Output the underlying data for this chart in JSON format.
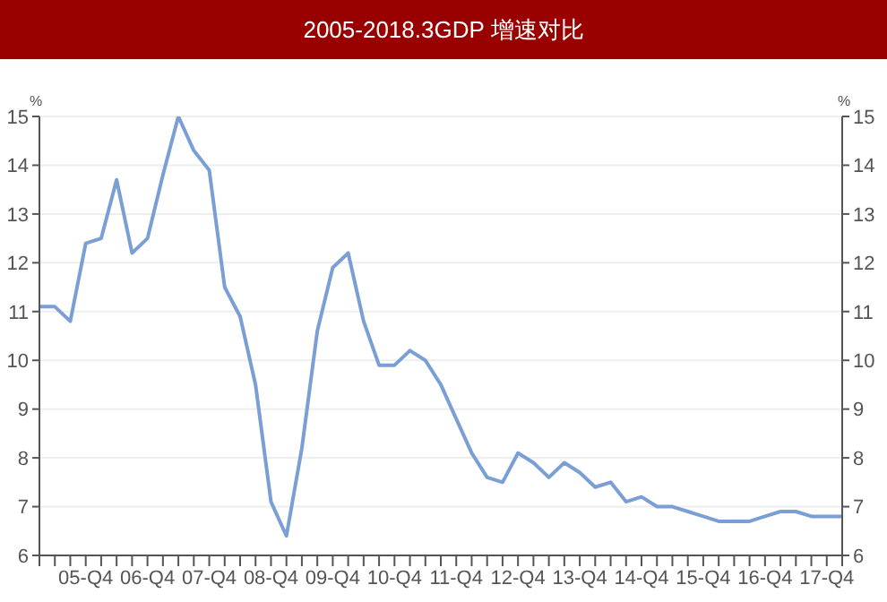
{
  "chart_data": {
    "type": "line",
    "title": "2005-2018.3GDP 增速对比",
    "ylabel": "%",
    "y2label": "%",
    "categories": [
      null,
      null,
      null,
      "05-Q4",
      null,
      null,
      null,
      "06-Q4",
      null,
      null,
      null,
      "07-Q4",
      null,
      null,
      null,
      "08-Q4",
      null,
      null,
      null,
      "09-Q4",
      null,
      null,
      null,
      "10-Q4",
      null,
      null,
      null,
      "11-Q4",
      null,
      null,
      null,
      "12-Q4",
      null,
      null,
      null,
      "13-Q4",
      null,
      null,
      null,
      "14-Q4",
      null,
      null,
      null,
      "15-Q4",
      null,
      null,
      null,
      "16-Q4",
      null,
      null,
      null,
      "17-Q4",
      null
    ],
    "series": [
      {
        "color": "#7a9fd4",
        "values": [
          11.1,
          11.1,
          10.8,
          12.4,
          12.5,
          13.7,
          12.2,
          12.5,
          13.8,
          15.0,
          14.3,
          13.9,
          11.5,
          10.9,
          9.5,
          7.1,
          6.4,
          8.2,
          10.6,
          11.9,
          12.2,
          10.8,
          9.9,
          9.9,
          10.2,
          10.0,
          9.5,
          8.8,
          8.1,
          7.6,
          7.5,
          8.1,
          7.9,
          7.6,
          7.9,
          7.7,
          7.4,
          7.5,
          7.1,
          7.2,
          7.0,
          7.0,
          6.9,
          6.8,
          6.7,
          6.7,
          6.7,
          6.8,
          6.9,
          6.9,
          6.8,
          6.8,
          6.8
        ]
      }
    ],
    "ylim": [
      6,
      15
    ],
    "yticks": [
      6,
      7,
      8,
      9,
      10,
      11,
      12,
      13,
      14,
      15
    ],
    "y2lim": [
      6,
      15
    ],
    "y2ticks": [
      6,
      7,
      8,
      9,
      10,
      11,
      12,
      13,
      14,
      15
    ],
    "grid": "y",
    "legend": false,
    "marker": "none",
    "line_style": "solid"
  }
}
